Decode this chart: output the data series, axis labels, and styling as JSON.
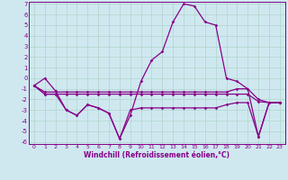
{
  "background_color": "#cfe8f0",
  "grid_color": "#b0d4cc",
  "line_color": "#880088",
  "xlabel": "Windchill (Refroidissement éolien,°C)",
  "ylim": [
    -6,
    7
  ],
  "xlim": [
    -0.5,
    23.5
  ],
  "yticks": [
    -6,
    -5,
    -4,
    -3,
    -2,
    -1,
    0,
    1,
    2,
    3,
    4,
    5,
    6,
    7
  ],
  "xticks": [
    0,
    1,
    2,
    3,
    4,
    5,
    6,
    7,
    8,
    9,
    10,
    11,
    12,
    13,
    14,
    15,
    16,
    17,
    18,
    19,
    20,
    21,
    22,
    23
  ],
  "series": [
    {
      "x": [
        0,
        1,
        2,
        3,
        4,
        5,
        6,
        7,
        8,
        9,
        10,
        11,
        12,
        13,
        14,
        15,
        16,
        17,
        18,
        19,
        20,
        21,
        22,
        23
      ],
      "y": [
        -0.7,
        0.0,
        -1.2,
        -3.0,
        -3.5,
        -2.5,
        -2.8,
        -3.3,
        -5.7,
        -3.5,
        -0.3,
        1.7,
        2.5,
        5.3,
        7.0,
        6.8,
        5.3,
        5.0,
        0.0,
        -0.3,
        -1.0,
        -5.5,
        -2.3,
        -2.3
      ]
    },
    {
      "x": [
        0,
        1,
        2,
        3,
        4,
        5,
        6,
        7,
        8,
        9,
        10,
        11,
        12,
        13,
        14,
        15,
        16,
        17,
        18,
        19,
        20,
        21,
        22,
        23
      ],
      "y": [
        -0.7,
        -1.3,
        -1.3,
        -1.3,
        -1.3,
        -1.3,
        -1.3,
        -1.3,
        -1.3,
        -1.3,
        -1.3,
        -1.3,
        -1.3,
        -1.3,
        -1.3,
        -1.3,
        -1.3,
        -1.3,
        -1.3,
        -1.0,
        -1.0,
        -2.0,
        -2.3,
        -2.3
      ]
    },
    {
      "x": [
        0,
        1,
        2,
        3,
        4,
        5,
        6,
        7,
        8,
        9,
        10,
        11,
        12,
        13,
        14,
        15,
        16,
        17,
        18,
        19,
        20,
        21,
        22,
        23
      ],
      "y": [
        -0.7,
        -1.5,
        -1.5,
        -1.5,
        -1.5,
        -1.5,
        -1.5,
        -1.5,
        -1.5,
        -1.5,
        -1.5,
        -1.5,
        -1.5,
        -1.5,
        -1.5,
        -1.5,
        -1.5,
        -1.5,
        -1.5,
        -1.5,
        -1.5,
        -2.2,
        -2.3,
        -2.3
      ]
    },
    {
      "x": [
        0,
        1,
        2,
        3,
        4,
        5,
        6,
        7,
        8,
        9,
        10,
        11,
        12,
        13,
        14,
        15,
        16,
        17,
        18,
        19,
        20,
        21,
        22,
        23
      ],
      "y": [
        -0.7,
        -1.5,
        -1.5,
        -3.0,
        -3.5,
        -2.5,
        -2.8,
        -3.3,
        -5.7,
        -3.0,
        -2.8,
        -2.8,
        -2.8,
        -2.8,
        -2.8,
        -2.8,
        -2.8,
        -2.8,
        -2.5,
        -2.3,
        -2.3,
        -5.5,
        -2.3,
        -2.3
      ]
    }
  ]
}
